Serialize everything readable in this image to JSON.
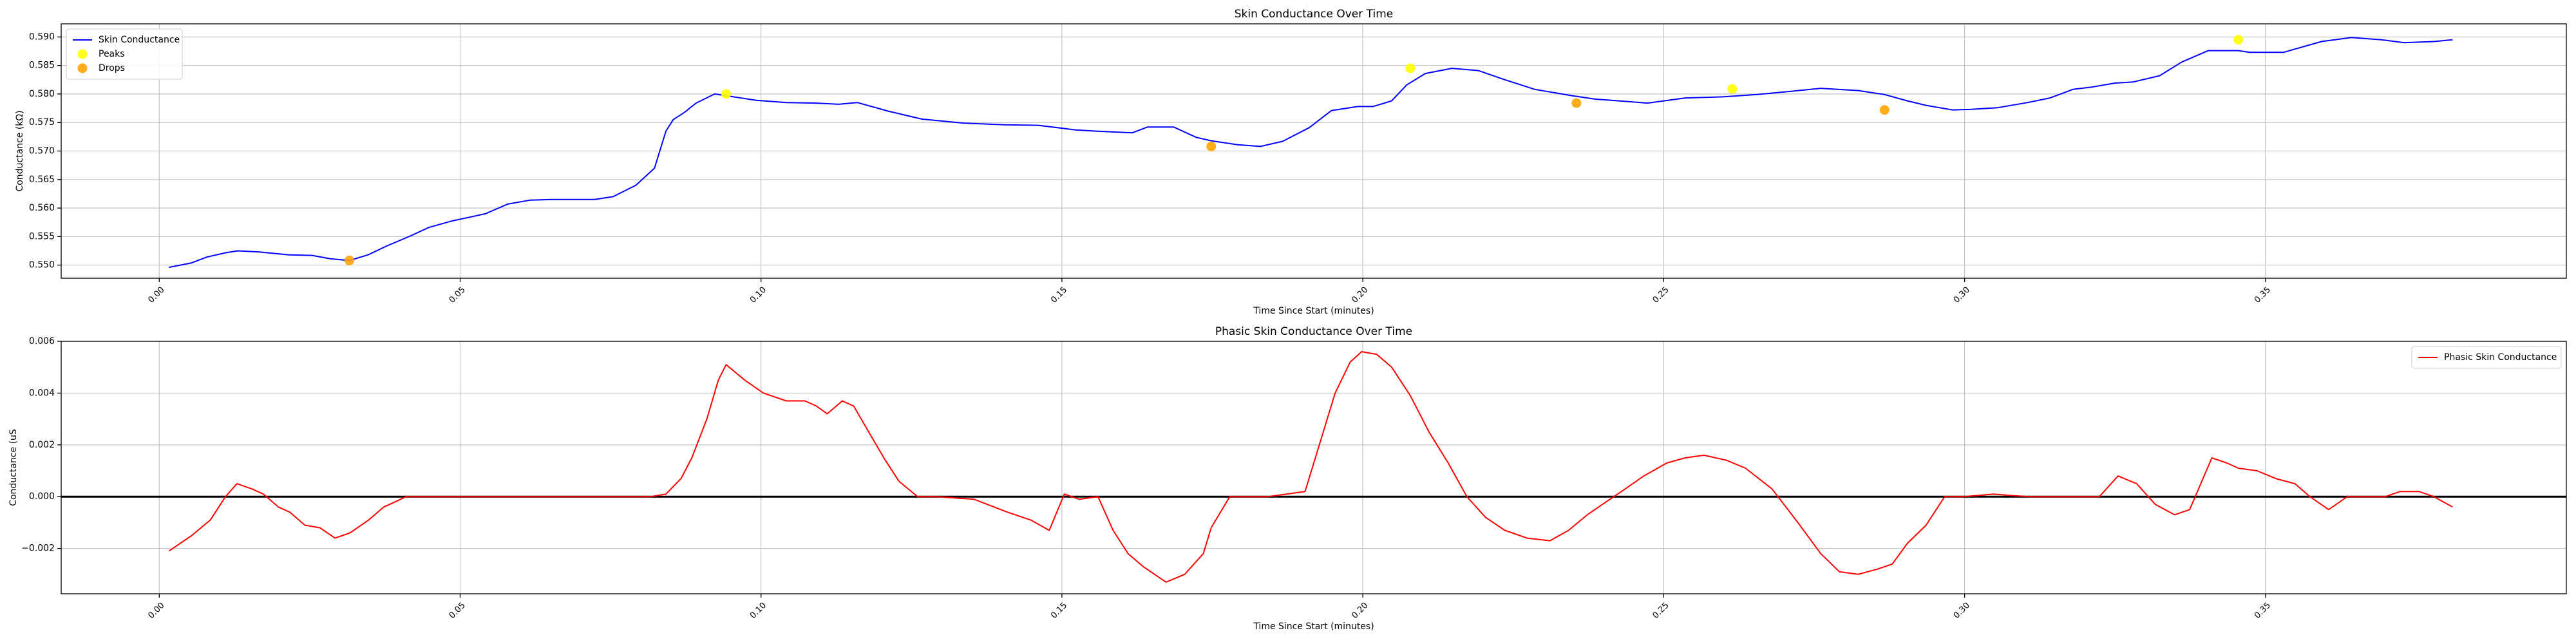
{
  "chart_data": [
    {
      "type": "line",
      "title": "Skin Conductance Over Time",
      "xlabel": "Time Since Start (minutes)",
      "ylabel": "Conductance (kΩ)",
      "xlim": [
        -0.0163,
        0.4
      ],
      "ylim": [
        0.5477,
        0.5923
      ],
      "xticks": [
        0.0,
        0.05,
        0.1,
        0.15,
        0.2,
        0.25,
        0.3,
        0.35
      ],
      "xtick_labels": [
        "0.00",
        "0.05",
        "0.10",
        "0.15",
        "0.20",
        "0.25",
        "0.30",
        "0.35"
      ],
      "yticks": [
        0.55,
        0.555,
        0.56,
        0.565,
        0.57,
        0.575,
        0.58,
        0.585,
        0.59
      ],
      "ytick_labels": [
        "0.550",
        "0.555",
        "0.560",
        "0.565",
        "0.570",
        "0.575",
        "0.580",
        "0.585",
        "0.590"
      ],
      "grid": true,
      "legend_position": "top-left",
      "series": [
        {
          "name": "Skin Conductance",
          "kind": "line",
          "color": "#0000ff",
          "x": [
            0.0016,
            0.0054,
            0.0079,
            0.0112,
            0.0131,
            0.0166,
            0.0216,
            0.0254,
            0.0285,
            0.0316,
            0.0347,
            0.0379,
            0.0417,
            0.0448,
            0.0485,
            0.0516,
            0.0542,
            0.0579,
            0.0617,
            0.0654,
            0.0692,
            0.0723,
            0.0754,
            0.0792,
            0.0823,
            0.0842,
            0.0854,
            0.0873,
            0.0892,
            0.0923,
            0.0942,
            0.0992,
            0.1042,
            0.1092,
            0.1129,
            0.116,
            0.1211,
            0.1267,
            0.1336,
            0.1404,
            0.1461,
            0.1523,
            0.1554,
            0.1617,
            0.1642,
            0.1686,
            0.1723,
            0.1748,
            0.1792,
            0.183,
            0.1867,
            0.1911,
            0.1948,
            0.1992,
            0.2017,
            0.2048,
            0.2073,
            0.2104,
            0.2148,
            0.2192,
            0.2236,
            0.2286,
            0.2348,
            0.2386,
            0.2436,
            0.2473,
            0.2536,
            0.2598,
            0.2655,
            0.2705,
            0.2761,
            0.2823,
            0.2867,
            0.2905,
            0.2936,
            0.298,
            0.3011,
            0.3055,
            0.3105,
            0.3142,
            0.318,
            0.3211,
            0.3249,
            0.328,
            0.3324,
            0.3361,
            0.3405,
            0.3455,
            0.3474,
            0.353,
            0.3593,
            0.3643,
            0.3693,
            0.373,
            0.378,
            0.3811
          ],
          "y": [
            0.5496,
            0.5504,
            0.5514,
            0.5522,
            0.5525,
            0.5523,
            0.5518,
            0.5517,
            0.5511,
            0.5508,
            0.5518,
            0.5534,
            0.5551,
            0.5566,
            0.5577,
            0.5584,
            0.559,
            0.5607,
            0.5614,
            0.5615,
            0.5615,
            0.5615,
            0.562,
            0.564,
            0.567,
            0.5735,
            0.5755,
            0.5768,
            0.5784,
            0.58,
            0.5797,
            0.5789,
            0.5785,
            0.5784,
            0.5782,
            0.5785,
            0.577,
            0.5756,
            0.5749,
            0.5746,
            0.5745,
            0.5737,
            0.5735,
            0.5732,
            0.5742,
            0.5742,
            0.5724,
            0.5718,
            0.5711,
            0.5708,
            0.5717,
            0.5741,
            0.5771,
            0.5778,
            0.5778,
            0.5788,
            0.5816,
            0.5836,
            0.5845,
            0.5841,
            0.5825,
            0.5808,
            0.5797,
            0.5791,
            0.5787,
            0.5784,
            0.5793,
            0.5795,
            0.5799,
            0.5804,
            0.581,
            0.5806,
            0.5799,
            0.5788,
            0.578,
            0.5772,
            0.5773,
            0.5776,
            0.5785,
            0.5793,
            0.5808,
            0.5812,
            0.5819,
            0.5821,
            0.5832,
            0.5856,
            0.5876,
            0.5876,
            0.5873,
            0.5873,
            0.5892,
            0.5899,
            0.5895,
            0.589,
            0.5892,
            0.5895
          ]
        },
        {
          "name": "Peaks",
          "kind": "scatter",
          "color": "#ffff00",
          "x": [
            0.0942,
            0.2079,
            0.2614,
            0.3455
          ],
          "y": [
            0.58,
            0.5845,
            0.5809,
            0.5895
          ]
        },
        {
          "name": "Drops",
          "kind": "scatter",
          "color": "#ffa500",
          "x": [
            0.0316,
            0.1748,
            0.2355,
            0.2867
          ],
          "y": [
            0.5508,
            0.5708,
            0.5784,
            0.5772
          ]
        }
      ]
    },
    {
      "type": "line",
      "title": "Phasic Skin Conductance Over Time",
      "xlabel": "Time Since Start (minutes)",
      "ylabel": "Conductance (uS",
      "xlim": [
        -0.0163,
        0.4
      ],
      "ylim": [
        -0.00375,
        0.006
      ],
      "xticks": [
        0.0,
        0.05,
        0.1,
        0.15,
        0.2,
        0.25,
        0.3,
        0.35
      ],
      "xtick_labels": [
        "0.00",
        "0.05",
        "0.10",
        "0.15",
        "0.20",
        "0.25",
        "0.30",
        "0.35"
      ],
      "yticks": [
        -0.002,
        0.0,
        0.002,
        0.004,
        0.006
      ],
      "ytick_labels": [
        "−0.002",
        "0.000",
        "0.002",
        "0.004",
        "0.006"
      ],
      "zero_line": true,
      "grid": true,
      "legend_position": "top-right",
      "series": [
        {
          "name": "Phasic Skin Conductance",
          "kind": "line",
          "color": "#ff0000",
          "x": [
            0.0016,
            0.0054,
            0.0085,
            0.011,
            0.0129,
            0.0154,
            0.0173,
            0.0198,
            0.0217,
            0.0242,
            0.0267,
            0.0292,
            0.0317,
            0.0348,
            0.0373,
            0.0392,
            0.041,
            0.046,
            0.0529,
            0.0598,
            0.0654,
            0.0698,
            0.0748,
            0.0817,
            0.0842,
            0.0867,
            0.0885,
            0.091,
            0.0929,
            0.0942,
            0.0973,
            0.1004,
            0.1042,
            0.1073,
            0.1092,
            0.111,
            0.1135,
            0.1154,
            0.1179,
            0.1204,
            0.1229,
            0.126,
            0.1292,
            0.1354,
            0.141,
            0.1448,
            0.1479,
            0.1504,
            0.1529,
            0.156,
            0.1585,
            0.161,
            0.1635,
            0.1673,
            0.1704,
            0.1735,
            0.1748,
            0.1779,
            0.181,
            0.1842,
            0.1904,
            0.1954,
            0.1979,
            0.1998,
            0.2023,
            0.2048,
            0.2079,
            0.211,
            0.2142,
            0.2173,
            0.2204,
            0.2236,
            0.2273,
            0.2311,
            0.2342,
            0.2373,
            0.2398,
            0.2436,
            0.2467,
            0.2505,
            0.2536,
            0.2567,
            0.2605,
            0.2636,
            0.268,
            0.2723,
            0.2761,
            0.2792,
            0.2823,
            0.2855,
            0.288,
            0.2905,
            0.2936,
            0.2967,
            0.2998,
            0.3048,
            0.3105,
            0.3161,
            0.3224,
            0.3255,
            0.3286,
            0.3317,
            0.3349,
            0.3374,
            0.3411,
            0.3436,
            0.3455,
            0.3486,
            0.3517,
            0.3549,
            0.3574,
            0.3605,
            0.3636,
            0.3667,
            0.3699,
            0.3724,
            0.3755,
            0.378,
            0.3811
          ],
          "y": [
            -0.0021,
            -0.0015,
            -0.0009,
            0.0,
            0.0005,
            0.0003,
            0.0001,
            -0.0004,
            -0.0006,
            -0.0011,
            -0.0012,
            -0.0016,
            -0.0014,
            -0.0009,
            -0.0004,
            -0.0002,
            0.0,
            0.0,
            0.0,
            0.0,
            0.0,
            0.0,
            0.0,
            0.0,
            0.0001,
            0.0007,
            0.0015,
            0.003,
            0.0045,
            0.0051,
            0.0045,
            0.004,
            0.0037,
            0.0037,
            0.0035,
            0.0032,
            0.0037,
            0.0035,
            0.0025,
            0.0015,
            0.0006,
            0.0,
            0.0,
            -0.0001,
            -0.0006,
            -0.0009,
            -0.0013,
            0.0001,
            -0.0001,
            0.0,
            -0.0013,
            -0.0022,
            -0.0027,
            -0.0033,
            -0.003,
            -0.0022,
            -0.0012,
            0.0,
            0.0,
            0.0,
            0.0002,
            0.004,
            0.0052,
            0.0056,
            0.0055,
            0.005,
            0.0039,
            0.0025,
            0.0013,
            0.0,
            -0.0008,
            -0.0013,
            -0.0016,
            -0.0017,
            -0.0013,
            -0.0007,
            -0.0003,
            0.0003,
            0.0008,
            0.0013,
            0.0015,
            0.0016,
            0.0014,
            0.0011,
            0.0003,
            -0.001,
            -0.0022,
            -0.0029,
            -0.003,
            -0.0028,
            -0.0026,
            -0.0018,
            -0.0011,
            0.0,
            0.0,
            0.0001,
            0.0,
            0.0,
            0.0,
            0.0008,
            0.0005,
            -0.0003,
            -0.0007,
            -0.0005,
            0.0015,
            0.0013,
            0.0011,
            0.001,
            0.0007,
            0.0005,
            0.0,
            -0.0005,
            0.0,
            0.0,
            0.0,
            0.0002,
            0.0002,
            0.0,
            -0.0004
          ]
        }
      ]
    }
  ]
}
